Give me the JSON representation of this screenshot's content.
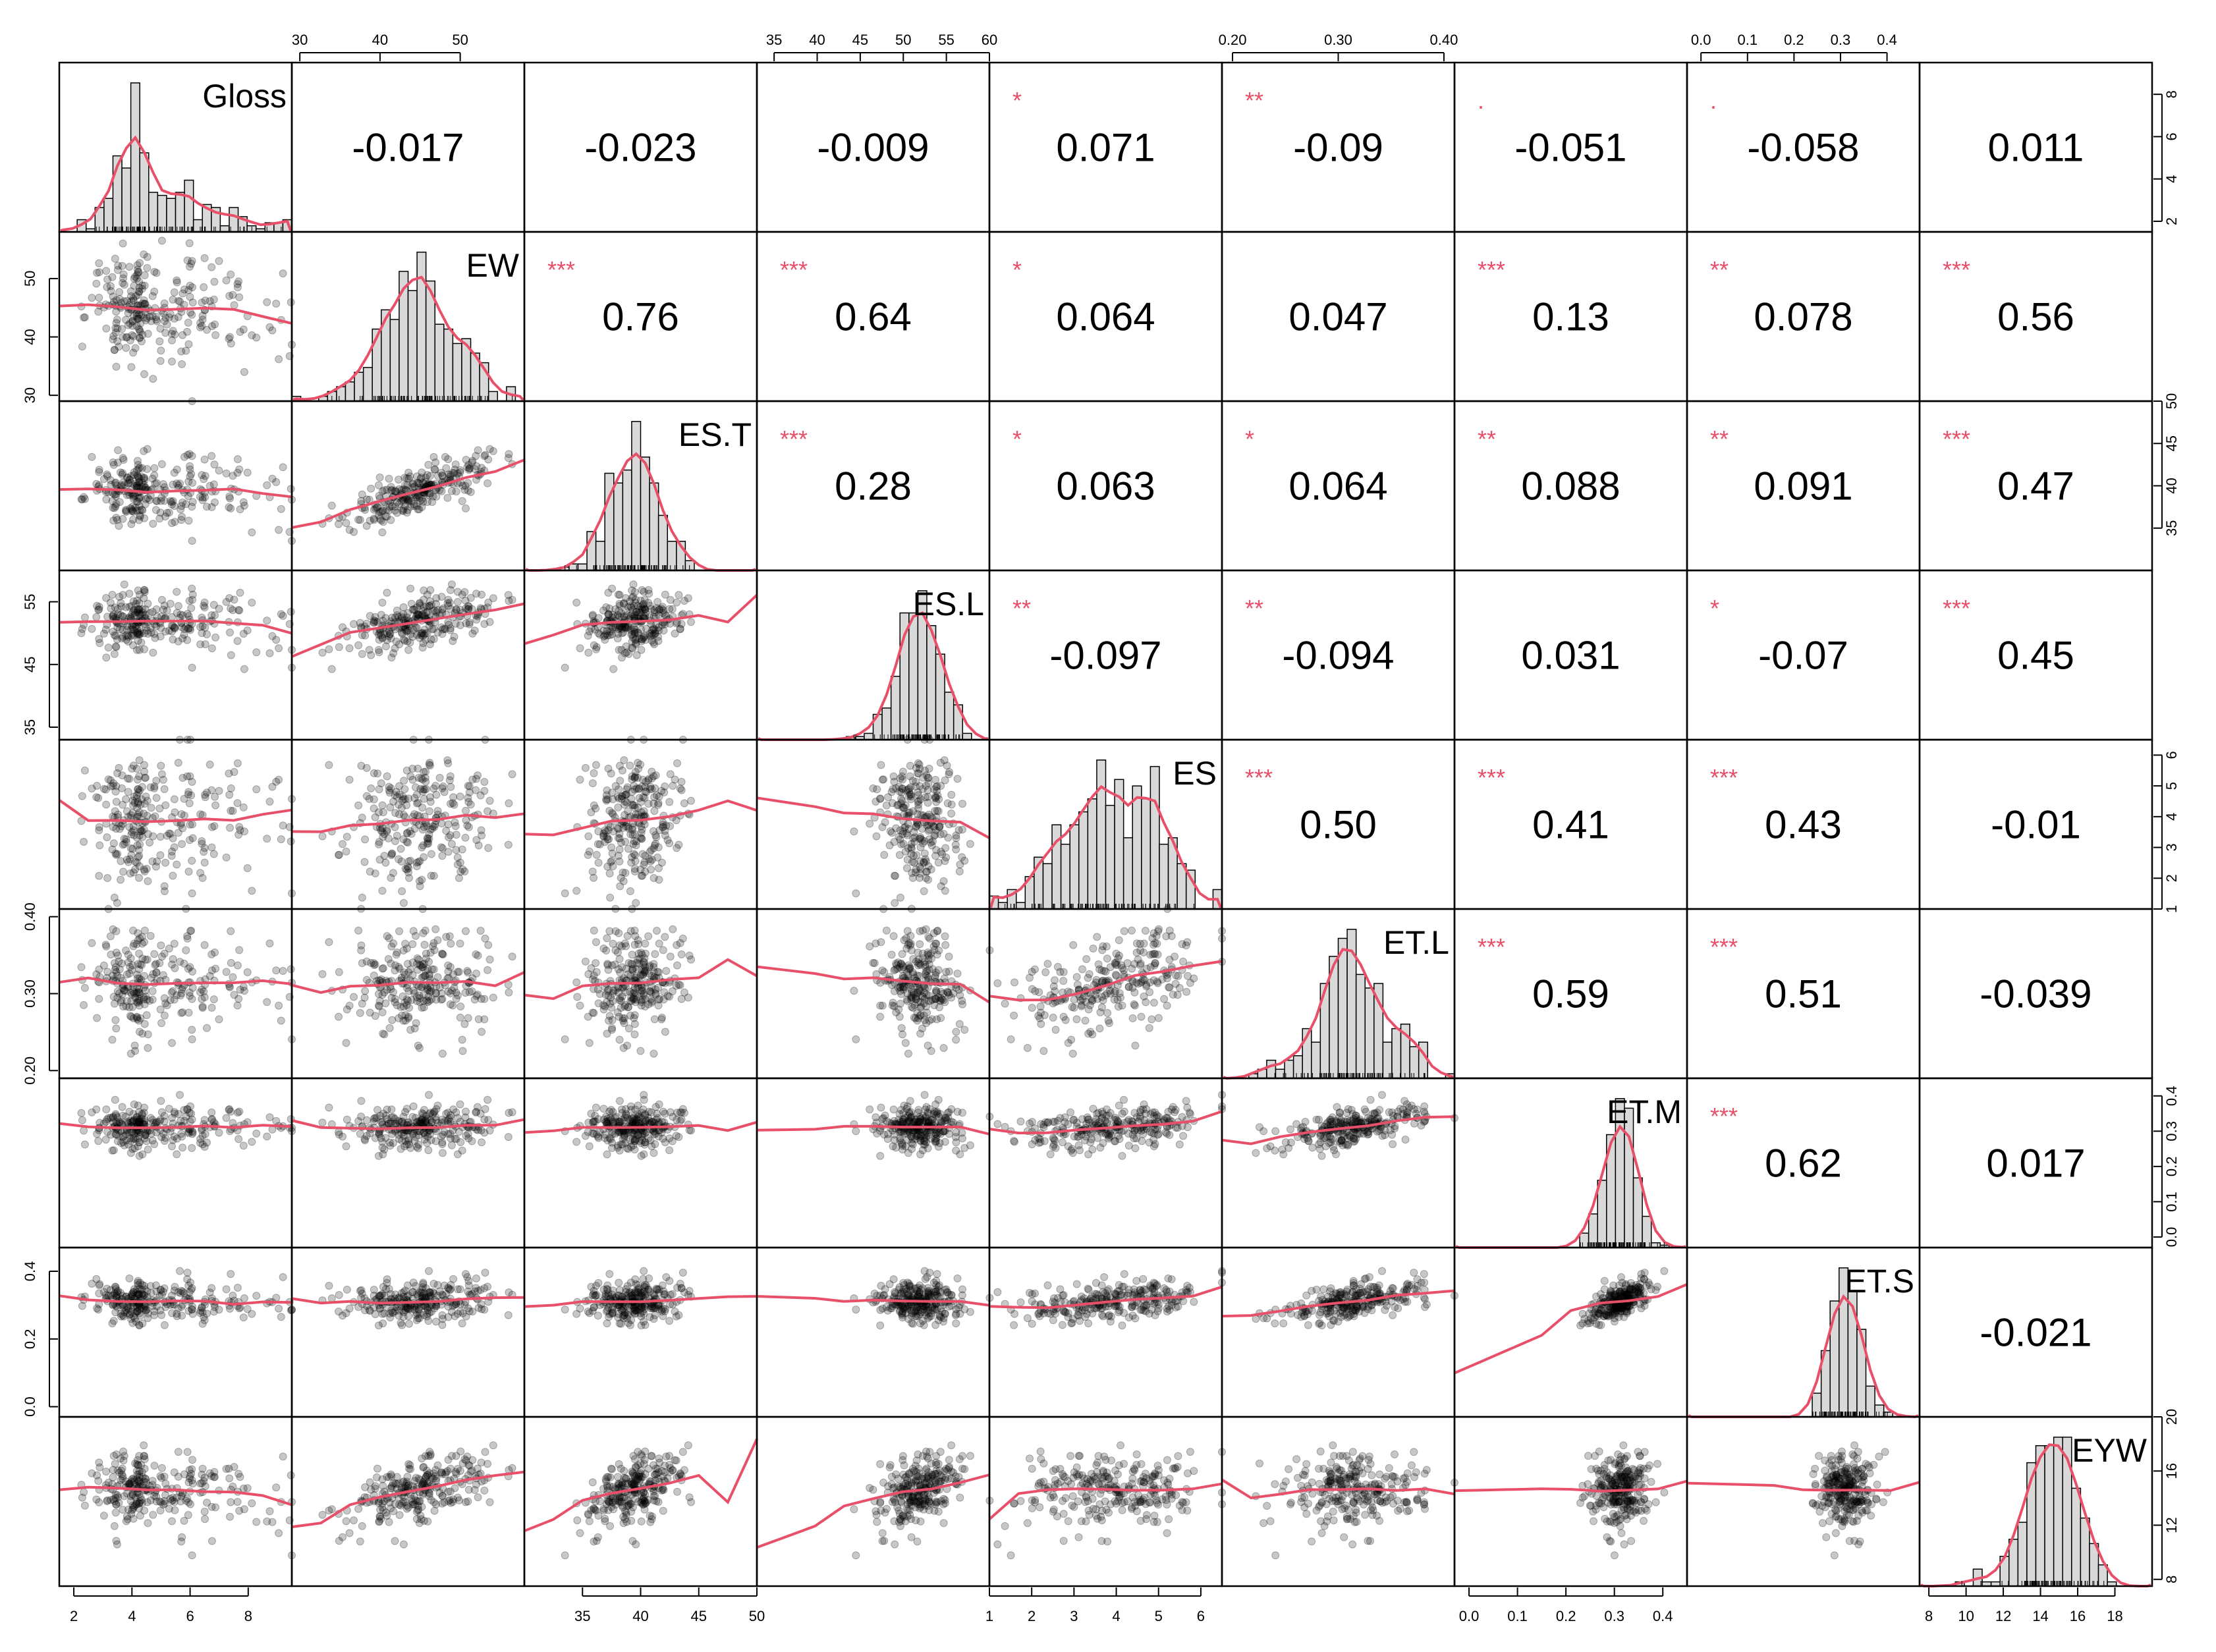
{
  "chart_data": {
    "type": "scatter_matrix",
    "variables": [
      "Gloss",
      "EW",
      "ES.T",
      "ES.L",
      "ES",
      "ET.L",
      "ET.M",
      "ET.S",
      "EYW"
    ],
    "ranges": [
      [
        1.5,
        9.5
      ],
      [
        29,
        58
      ],
      [
        30,
        50
      ],
      [
        33,
        60
      ],
      [
        1,
        6.5
      ],
      [
        0.19,
        0.41
      ],
      [
        -0.03,
        0.45
      ],
      [
        -0.03,
        0.47
      ],
      [
        7.5,
        20
      ]
    ],
    "ticks": [
      [
        2,
        4,
        6,
        8
      ],
      [
        30,
        40,
        50
      ],
      [
        35,
        40,
        45,
        50
      ],
      [
        35,
        40,
        45,
        50,
        55,
        60
      ],
      [
        1,
        2,
        3,
        4,
        5,
        6
      ],
      [
        0.2,
        0.3,
        0.4
      ],
      [
        0.0,
        0.1,
        0.2,
        0.3,
        0.4
      ],
      [
        0.0,
        0.1,
        0.2,
        0.3,
        0.4
      ],
      [
        8,
        10,
        12,
        14,
        16,
        18,
        20
      ]
    ],
    "tick_labels": [
      [
        "2",
        "4",
        "6",
        "8"
      ],
      [
        "30",
        "40",
        "50"
      ],
      [
        "35",
        "40",
        "45",
        "50"
      ],
      [
        "35",
        "40",
        "45",
        "50",
        "55",
        "60"
      ],
      [
        "1",
        "2",
        "3",
        "4",
        "5",
        "6"
      ],
      [
        "0.20",
        "0.30",
        "0.40"
      ],
      [
        "0.0",
        "0.1",
        "0.2",
        "0.3",
        "0.4"
      ],
      [
        "0.0",
        "0.1",
        "0.2",
        "0.3",
        "0.4"
      ],
      [
        "8",
        "10",
        "12",
        "14",
        "16",
        "18",
        "20"
      ]
    ],
    "axes": {
      "top": [
        {
          "var": 1,
          "ticks": [
            30,
            40,
            50
          ],
          "labels": [
            "30",
            "40",
            "50"
          ]
        },
        {
          "var": 3,
          "ticks": [
            35,
            40,
            45,
            50,
            55,
            60
          ],
          "labels": [
            "35",
            "40",
            "45",
            "50",
            "55",
            "60"
          ]
        },
        {
          "var": 5,
          "ticks": [
            0.2,
            0.3,
            0.4
          ],
          "labels": [
            "0.20",
            "0.30",
            "0.40"
          ]
        },
        {
          "var": 7,
          "ticks": [
            0.0,
            0.1,
            0.2,
            0.3,
            0.4
          ],
          "labels": [
            "0.0",
            "0.1",
            "0.2",
            "0.3",
            "0.4"
          ]
        }
      ],
      "bottom": [
        {
          "var": 0,
          "ticks": [
            2,
            4,
            6,
            8
          ],
          "labels": [
            "2",
            "4",
            "6",
            "8"
          ]
        },
        {
          "var": 2,
          "ticks": [
            35,
            40,
            45,
            50
          ],
          "labels": [
            "35",
            "40",
            "45",
            "50"
          ]
        },
        {
          "var": 4,
          "ticks": [
            1,
            2,
            3,
            4,
            5,
            6
          ],
          "labels": [
            "1",
            "2",
            "3",
            "4",
            "5",
            "6"
          ]
        },
        {
          "var": 6,
          "ticks": [
            0.0,
            0.1,
            0.2,
            0.3,
            0.4
          ],
          "labels": [
            "0.0",
            "0.1",
            "0.2",
            "0.3",
            "0.4"
          ]
        },
        {
          "var": 8,
          "ticks": [
            8,
            10,
            12,
            14,
            16,
            18
          ],
          "labels": [
            "8",
            "10",
            "12",
            "14",
            "16",
            "18"
          ]
        }
      ],
      "left": [
        {
          "var": 1,
          "ticks": [
            30,
            40,
            50
          ],
          "labels": [
            "30",
            "40",
            "50"
          ]
        },
        {
          "var": 3,
          "ticks": [
            35,
            45,
            55
          ],
          "labels": [
            "35",
            "45",
            "55"
          ]
        },
        {
          "var": 5,
          "ticks": [
            0.2,
            0.3,
            0.4
          ],
          "labels": [
            "0.20",
            "0.30",
            "0.40"
          ]
        },
        {
          "var": 7,
          "ticks": [
            0.0,
            0.2,
            0.4
          ],
          "labels": [
            "0.0",
            "0.2",
            "0.4"
          ]
        }
      ],
      "right": [
        {
          "var": 0,
          "ticks": [
            2,
            4,
            6,
            8
          ],
          "labels": [
            "2",
            "4",
            "6",
            "8"
          ]
        },
        {
          "var": 2,
          "ticks": [
            35,
            40,
            45,
            50
          ],
          "labels": [
            "35",
            "40",
            "45",
            "50"
          ]
        },
        {
          "var": 4,
          "ticks": [
            1,
            2,
            3,
            4,
            5,
            6
          ],
          "labels": [
            "1",
            "2",
            "3",
            "4",
            "5",
            "6"
          ]
        },
        {
          "var": 6,
          "ticks": [
            0.0,
            0.1,
            0.2,
            0.3,
            0.4
          ],
          "labels": [
            "0.0",
            "0.1",
            "0.2",
            "0.3",
            "0.4"
          ]
        },
        {
          "var": 8,
          "ticks": [
            8,
            12,
            16,
            20
          ],
          "labels": [
            "8",
            "12",
            "16",
            "20"
          ]
        }
      ]
    },
    "distributions": [
      {
        "mean": 4.3,
        "sd": 1.3,
        "skew": 4
      },
      {
        "mean": 45,
        "sd": 4.5,
        "skew": 0
      },
      {
        "mean": 39.5,
        "sd": 1.8,
        "skew": 0
      },
      {
        "mean": 52,
        "sd": 2.5,
        "skew": 0
      },
      {
        "mean": 3.8,
        "sd": 1.1,
        "skew": 0
      },
      {
        "mean": 0.31,
        "sd": 0.035,
        "skew": 0
      },
      {
        "mean": 0.31,
        "sd": 0.03,
        "skew": 0
      },
      {
        "mean": 0.31,
        "sd": 0.03,
        "skew": 0
      },
      {
        "mean": 14.8,
        "sd": 1.3,
        "skew": 0
      }
    ],
    "correlations": [
      {
        "row": 0,
        "col": 1,
        "r": "-0.017",
        "stars": ""
      },
      {
        "row": 0,
        "col": 2,
        "r": "-0.023",
        "stars": ""
      },
      {
        "row": 0,
        "col": 3,
        "r": "-0.009",
        "stars": ""
      },
      {
        "row": 0,
        "col": 4,
        "r": "0.071",
        "stars": "*"
      },
      {
        "row": 0,
        "col": 5,
        "r": "-0.09",
        "stars": "**"
      },
      {
        "row": 0,
        "col": 6,
        "r": "-0.051",
        "stars": "."
      },
      {
        "row": 0,
        "col": 7,
        "r": "-0.058",
        "stars": "."
      },
      {
        "row": 0,
        "col": 8,
        "r": "0.011",
        "stars": ""
      },
      {
        "row": 1,
        "col": 2,
        "r": "0.76",
        "stars": "***"
      },
      {
        "row": 1,
        "col": 3,
        "r": "0.64",
        "stars": "***"
      },
      {
        "row": 1,
        "col": 4,
        "r": "0.064",
        "stars": "*"
      },
      {
        "row": 1,
        "col": 5,
        "r": "0.047",
        "stars": ""
      },
      {
        "row": 1,
        "col": 6,
        "r": "0.13",
        "stars": "***"
      },
      {
        "row": 1,
        "col": 7,
        "r": "0.078",
        "stars": "**"
      },
      {
        "row": 1,
        "col": 8,
        "r": "0.56",
        "stars": "***"
      },
      {
        "row": 2,
        "col": 3,
        "r": "0.28",
        "stars": "***"
      },
      {
        "row": 2,
        "col": 4,
        "r": "0.063",
        "stars": "*"
      },
      {
        "row": 2,
        "col": 5,
        "r": "0.064",
        "stars": "*"
      },
      {
        "row": 2,
        "col": 6,
        "r": "0.088",
        "stars": "**"
      },
      {
        "row": 2,
        "col": 7,
        "r": "0.091",
        "stars": "**"
      },
      {
        "row": 2,
        "col": 8,
        "r": "0.47",
        "stars": "***"
      },
      {
        "row": 3,
        "col": 4,
        "r": "-0.097",
        "stars": "**"
      },
      {
        "row": 3,
        "col": 5,
        "r": "-0.094",
        "stars": "**"
      },
      {
        "row": 3,
        "col": 6,
        "r": "0.031",
        "stars": ""
      },
      {
        "row": 3,
        "col": 7,
        "r": "-0.07",
        "stars": "*"
      },
      {
        "row": 3,
        "col": 8,
        "r": "0.45",
        "stars": "***"
      },
      {
        "row": 4,
        "col": 5,
        "r": "0.50",
        "stars": "***"
      },
      {
        "row": 4,
        "col": 6,
        "r": "0.41",
        "stars": "***"
      },
      {
        "row": 4,
        "col": 7,
        "r": "0.43",
        "stars": "***"
      },
      {
        "row": 4,
        "col": 8,
        "r": "-0.01",
        "stars": ""
      },
      {
        "row": 5,
        "col": 6,
        "r": "0.59",
        "stars": "***"
      },
      {
        "row": 5,
        "col": 7,
        "r": "0.51",
        "stars": "***"
      },
      {
        "row": 5,
        "col": 8,
        "r": "-0.039",
        "stars": ""
      },
      {
        "row": 6,
        "col": 7,
        "r": "0.62",
        "stars": "***"
      },
      {
        "row": 6,
        "col": 8,
        "r": "0.017",
        "stars": ""
      },
      {
        "row": 7,
        "col": 8,
        "r": "-0.021",
        "stars": ""
      }
    ],
    "sample_points_per_panel": 260,
    "colors": {
      "fit_line": "#e8506a",
      "stars": "#e8506a",
      "points": "#000000",
      "hist_fill": "#d9d9d9"
    }
  }
}
